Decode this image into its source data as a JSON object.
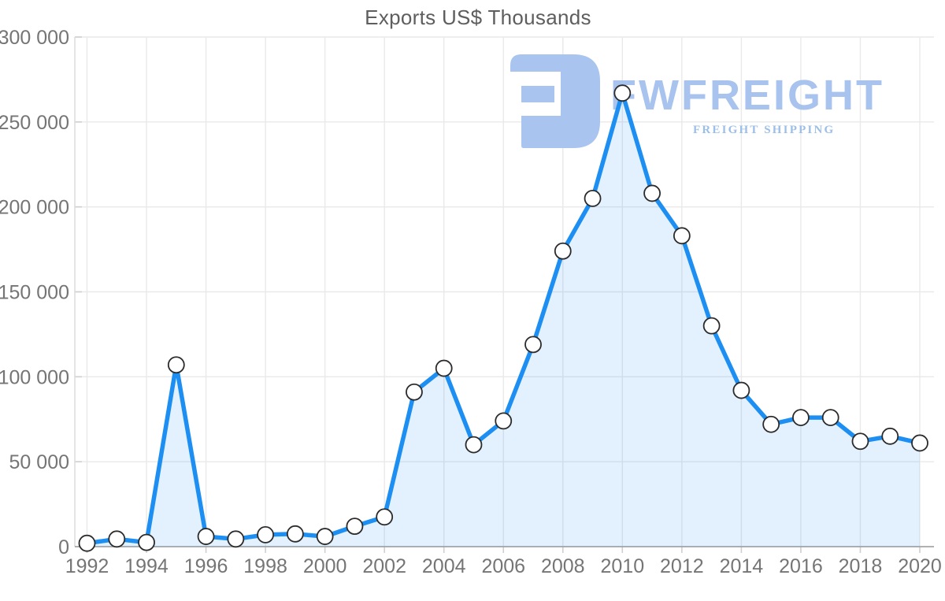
{
  "title": "Exports US$ Thousands",
  "watermark": {
    "brand": "FWFREIGHT",
    "tagline": "FREIGHT SHIPPING",
    "brand_color": "#a7c3ee",
    "tagline_color": "#9cbfe9",
    "glyph_color": "#a9c4ef"
  },
  "colors": {
    "line": "#1e8ff2",
    "area": "rgba(30,143,242,0.13)",
    "marker_fill": "#ffffff",
    "marker_stroke": "#2b2b2b",
    "grid": "#e9e9e9",
    "axis_bottom": "#a6a6a6",
    "axis_left": "#dcdcdc",
    "tick": "#cfcfcf",
    "label": "#757575",
    "title": "#5e5e5e"
  },
  "chart_data": {
    "type": "line",
    "title": "Exports US$ Thousands",
    "ylabel": "US$ Thousands",
    "x": [
      1992,
      1993,
      1994,
      1995,
      1996,
      1997,
      1998,
      1999,
      2000,
      2001,
      2002,
      2003,
      2004,
      2005,
      2006,
      2007,
      2008,
      2009,
      2010,
      2011,
      2012,
      2013,
      2014,
      2015,
      2016,
      2017,
      2018,
      2019,
      2020
    ],
    "values": [
      2000,
      4500,
      2500,
      107000,
      6000,
      4500,
      7000,
      7500,
      6000,
      12000,
      17500,
      91000,
      105000,
      60000,
      74000,
      119000,
      174000,
      205000,
      267000,
      208000,
      183000,
      130000,
      92000,
      72000,
      76000,
      76000,
      62000,
      65000,
      61000
    ],
    "ylim": [
      0,
      300000
    ],
    "y_tick_step": 50000,
    "y_tick_labels": [
      "0",
      "50 000",
      "100 000",
      "150 000",
      "200 000",
      "250 000",
      "300 000"
    ],
    "x_tick_labels": [
      "1992",
      "1994",
      "1996",
      "1998",
      "2000",
      "2002",
      "2004",
      "2006",
      "2008",
      "2010",
      "2012",
      "2014",
      "2016",
      "2018",
      "2020"
    ],
    "grid": true,
    "area_fill": true,
    "markers": true,
    "legend": "none"
  }
}
